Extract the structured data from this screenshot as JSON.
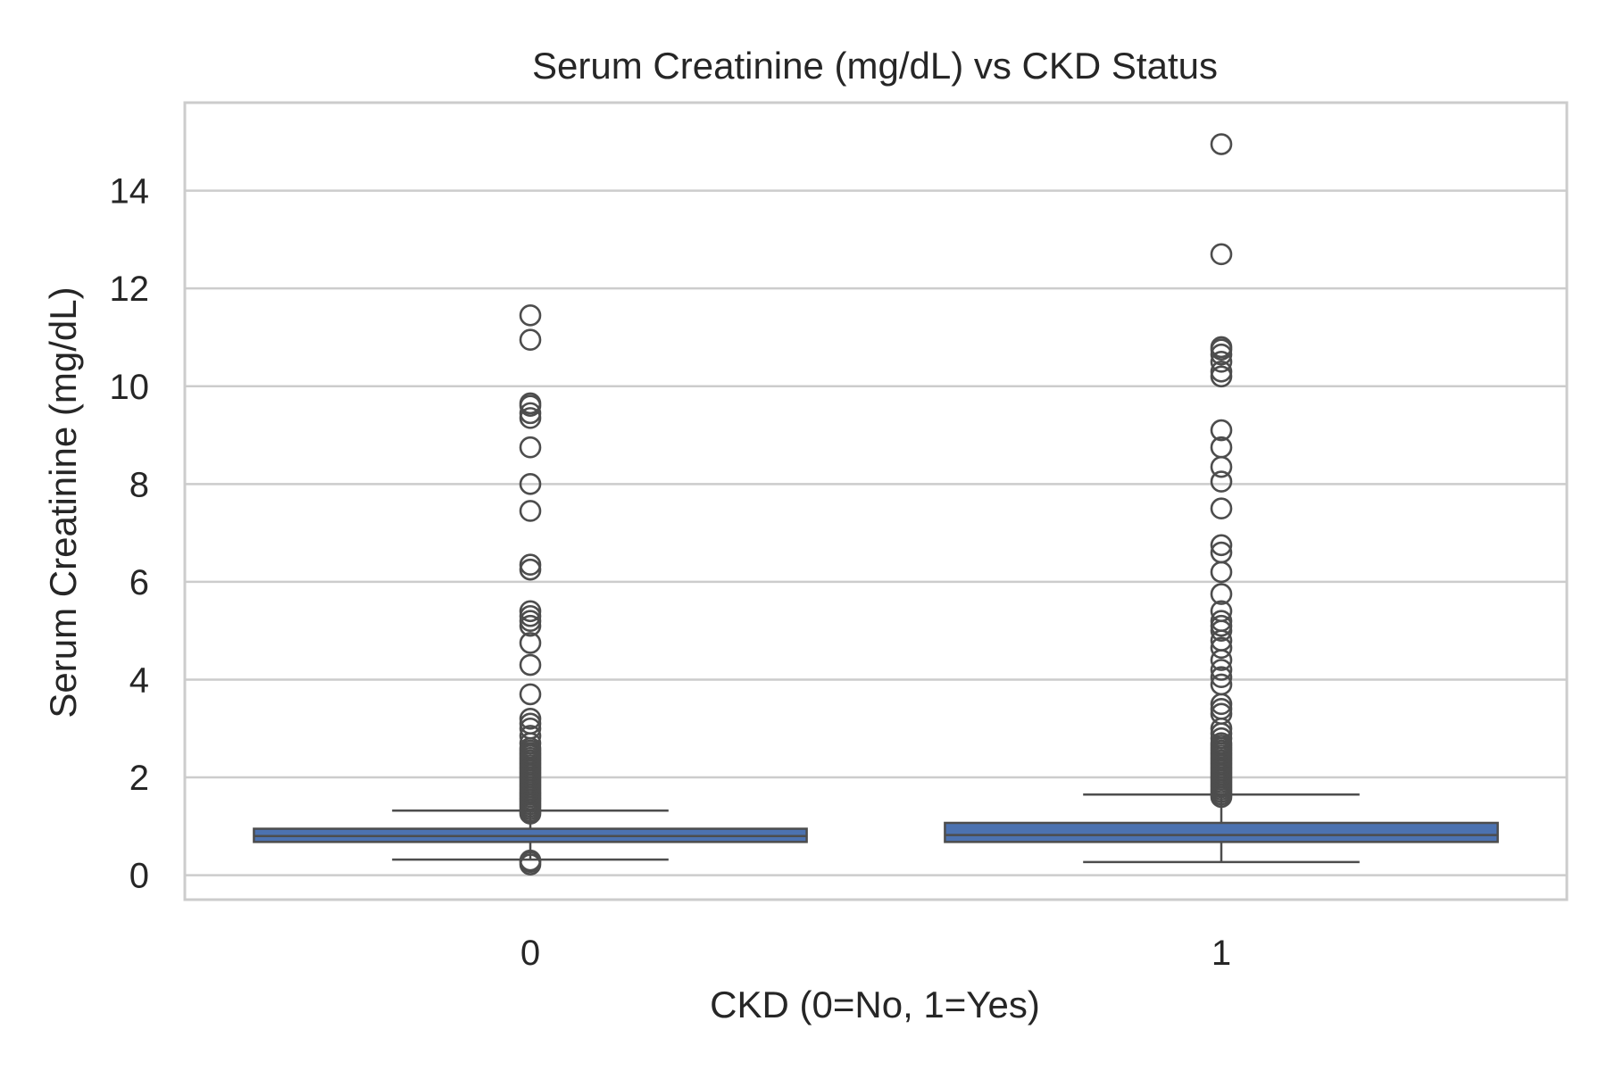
{
  "chart_data": {
    "type": "box",
    "title": "Serum Creatinine (mg/dL) vs CKD Status",
    "xlabel": "CKD (0=No, 1=Yes)",
    "ylabel": "Serum Creatinine (mg/dL)",
    "categories": [
      "0",
      "1"
    ],
    "ylim": [
      -0.5,
      15.8
    ],
    "yticks": [
      0,
      2,
      4,
      6,
      8,
      10,
      12,
      14
    ],
    "grid": true,
    "colors": {
      "box": "#4c72b0",
      "line": "#4d4d4d",
      "grid": "#cccccc",
      "text": "#262626"
    },
    "boxes": [
      {
        "category": "0",
        "whisker_low": 0.32,
        "q1": 0.68,
        "median": 0.8,
        "q3": 0.95,
        "whisker_high": 1.32,
        "outliers": [
          0.22,
          0.27,
          0.3,
          1.26,
          1.3,
          1.35,
          1.4,
          1.45,
          1.5,
          1.55,
          1.6,
          1.65,
          1.7,
          1.75,
          1.8,
          1.85,
          1.9,
          1.95,
          2.0,
          2.05,
          2.1,
          2.15,
          2.2,
          2.25,
          2.3,
          2.35,
          2.4,
          2.45,
          2.5,
          2.55,
          2.6,
          2.7,
          2.85,
          3.0,
          3.1,
          3.2,
          3.7,
          4.3,
          4.75,
          5.1,
          5.2,
          5.3,
          5.4,
          6.25,
          6.35,
          7.45,
          8.0,
          8.75,
          9.35,
          9.45,
          9.6,
          9.65,
          10.95,
          11.45
        ]
      },
      {
        "category": "1",
        "whisker_low": 0.27,
        "q1": 0.68,
        "median": 0.82,
        "q3": 1.07,
        "whisker_high": 1.65,
        "outliers": [
          1.6,
          1.65,
          1.7,
          1.75,
          1.8,
          1.85,
          1.9,
          1.95,
          2.0,
          2.05,
          2.1,
          2.15,
          2.2,
          2.25,
          2.3,
          2.35,
          2.4,
          2.45,
          2.5,
          2.55,
          2.6,
          2.65,
          2.7,
          2.8,
          2.9,
          3.0,
          3.3,
          3.4,
          3.5,
          3.9,
          4.05,
          4.2,
          4.4,
          4.65,
          4.8,
          5.0,
          5.1,
          5.2,
          5.4,
          5.75,
          6.2,
          6.6,
          6.75,
          7.5,
          8.05,
          8.35,
          8.75,
          9.1,
          10.2,
          10.3,
          10.5,
          10.65,
          10.75,
          10.8,
          12.7,
          14.95
        ]
      }
    ]
  }
}
